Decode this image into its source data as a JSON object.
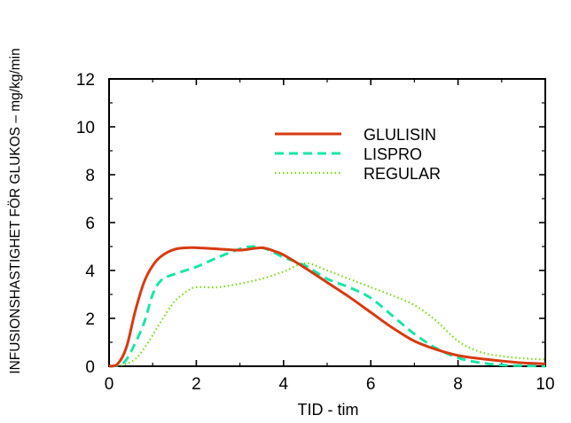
{
  "chart_data": {
    "type": "line",
    "title": "",
    "xlabel": "TID - tim",
    "ylabel": "INFUSIONSHASTIGHET FÖR GLUKOS – mg/kg/min",
    "xlim": [
      0,
      10
    ],
    "ylim": [
      0,
      12
    ],
    "xticks": [
      "0",
      "2",
      "4",
      "6",
      "8",
      "10"
    ],
    "yticks": [
      "0",
      "2",
      "4",
      "6",
      "8",
      "10",
      "12"
    ],
    "grid": false,
    "legend_position": "top-right",
    "series": [
      {
        "name": "GLULISIN",
        "color": "#d83a10",
        "style": "solid",
        "x": [
          0,
          0.2,
          0.4,
          0.6,
          0.8,
          1.0,
          1.2,
          1.5,
          1.8,
          2.0,
          2.5,
          3.0,
          3.5,
          3.8,
          4.0,
          4.5,
          5.0,
          5.5,
          6.0,
          6.5,
          7.0,
          7.5,
          8.0,
          8.5,
          9.0,
          9.5,
          10.0
        ],
        "y": [
          0,
          0.1,
          0.8,
          2.3,
          3.5,
          4.2,
          4.6,
          4.88,
          4.95,
          4.95,
          4.9,
          4.85,
          4.95,
          4.8,
          4.65,
          4.1,
          3.5,
          2.9,
          2.25,
          1.6,
          1.05,
          0.7,
          0.45,
          0.32,
          0.22,
          0.14,
          0.1
        ]
      },
      {
        "name": "LISPRO",
        "color": "#19e6a6",
        "style": "dashed",
        "x": [
          0,
          0.3,
          0.5,
          0.8,
          1.0,
          1.2,
          1.5,
          2.0,
          2.5,
          3.0,
          3.3,
          3.6,
          4.0,
          4.5,
          5.0,
          5.5,
          6.0,
          6.5,
          7.0,
          7.5,
          8.0,
          8.5,
          9.0,
          9.5,
          10.0
        ],
        "y": [
          0,
          0.1,
          0.6,
          1.8,
          3.0,
          3.6,
          3.85,
          4.15,
          4.55,
          4.9,
          5.0,
          4.9,
          4.55,
          4.2,
          3.65,
          3.3,
          2.85,
          2.1,
          1.35,
          0.75,
          0.35,
          0.15,
          0.05,
          0.02,
          0.0
        ]
      },
      {
        "name": "REGULAR",
        "color": "#7dd81a",
        "style": "dotted",
        "x": [
          0,
          0.3,
          0.6,
          0.9,
          1.2,
          1.5,
          1.8,
          2.0,
          2.5,
          3.0,
          3.5,
          4.0,
          4.5,
          5.0,
          5.5,
          6.0,
          6.5,
          7.0,
          7.5,
          8.0,
          8.5,
          9.0,
          9.5,
          10.0
        ],
        "y": [
          0,
          0.05,
          0.3,
          1.0,
          1.9,
          2.7,
          3.15,
          3.3,
          3.3,
          3.45,
          3.65,
          3.95,
          4.3,
          4.0,
          3.65,
          3.3,
          2.95,
          2.55,
          1.9,
          1.05,
          0.6,
          0.42,
          0.33,
          0.28
        ]
      }
    ]
  }
}
